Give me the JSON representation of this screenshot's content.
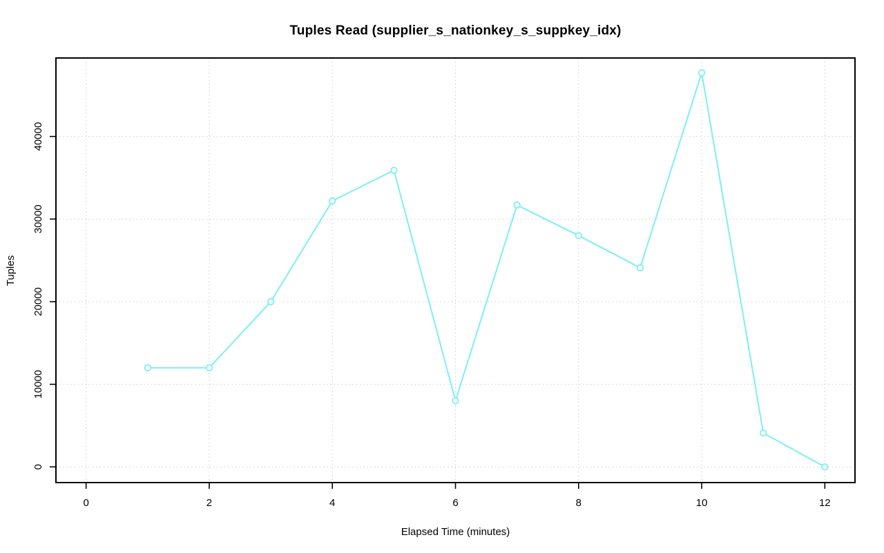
{
  "title": "Tuples Read (supplier_s_nationkey_s_suppkey_idx)",
  "colors": {
    "series": "#7CEFF4",
    "marker_fill": "#ffffff",
    "grid": "#cbcbcb",
    "axis": "#000000",
    "background": "#ffffff"
  },
  "chart_data": {
    "type": "line",
    "title": "Tuples Read (supplier_s_nationkey_s_suppkey_idx)",
    "xlabel": "Elapsed Time (minutes)",
    "ylabel": "Tuples",
    "x": [
      1,
      2,
      3,
      4,
      5,
      6,
      7,
      8,
      9,
      10,
      11,
      12
    ],
    "y": [
      12000,
      12000,
      20000,
      32200,
      35900,
      8000,
      31700,
      28000,
      24100,
      47700,
      4100,
      0
    ],
    "xticks": [
      0,
      2,
      4,
      6,
      8,
      10,
      12
    ],
    "yticks": [
      0,
      10000,
      20000,
      30000,
      40000
    ],
    "xlim": [
      -0.49,
      12.49
    ],
    "ylim": [
      -1900,
      49500
    ],
    "grid": true,
    "legend": "none",
    "marker": "open-circle",
    "line_style": "solid"
  }
}
